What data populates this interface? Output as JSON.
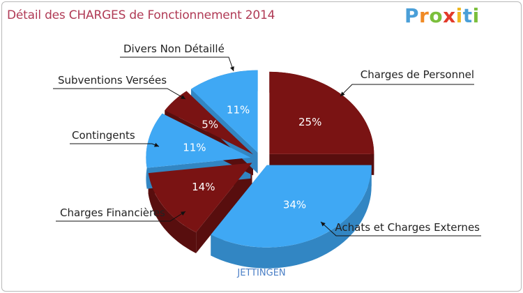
{
  "title": "Détail des CHARGES de Fonctionnement 2014",
  "logo": {
    "letters": [
      "P",
      "r",
      "o",
      "x",
      "i",
      "t",
      "i"
    ],
    "colors": [
      "#4a9fd8",
      "#f08a24",
      "#7bbf3c",
      "#e23a2a",
      "#f0b820",
      "#4a9fd8",
      "#7bbf3c"
    ]
  },
  "chart_data": {
    "type": "pie",
    "subtitle": "JETTINGEN",
    "colors": {
      "red": "#7a1313",
      "blue": "#3fa8f4"
    },
    "slices": [
      {
        "label": "Charges de Personnel",
        "percent": 25,
        "value_label": "25%",
        "color": "red"
      },
      {
        "label": "Achats et Charges Externes",
        "percent": 34,
        "value_label": "34%",
        "color": "blue"
      },
      {
        "label": "Charges Financières",
        "percent": 14,
        "value_label": "14%",
        "color": "red"
      },
      {
        "label": "Contingents",
        "percent": 11,
        "value_label": "11%",
        "color": "blue"
      },
      {
        "label": "Subventions Versées",
        "percent": 5,
        "value_label": "5%",
        "color": "red"
      },
      {
        "label": "Divers Non Détaillé",
        "percent": 11,
        "value_label": "11%",
        "color": "blue"
      }
    ]
  }
}
